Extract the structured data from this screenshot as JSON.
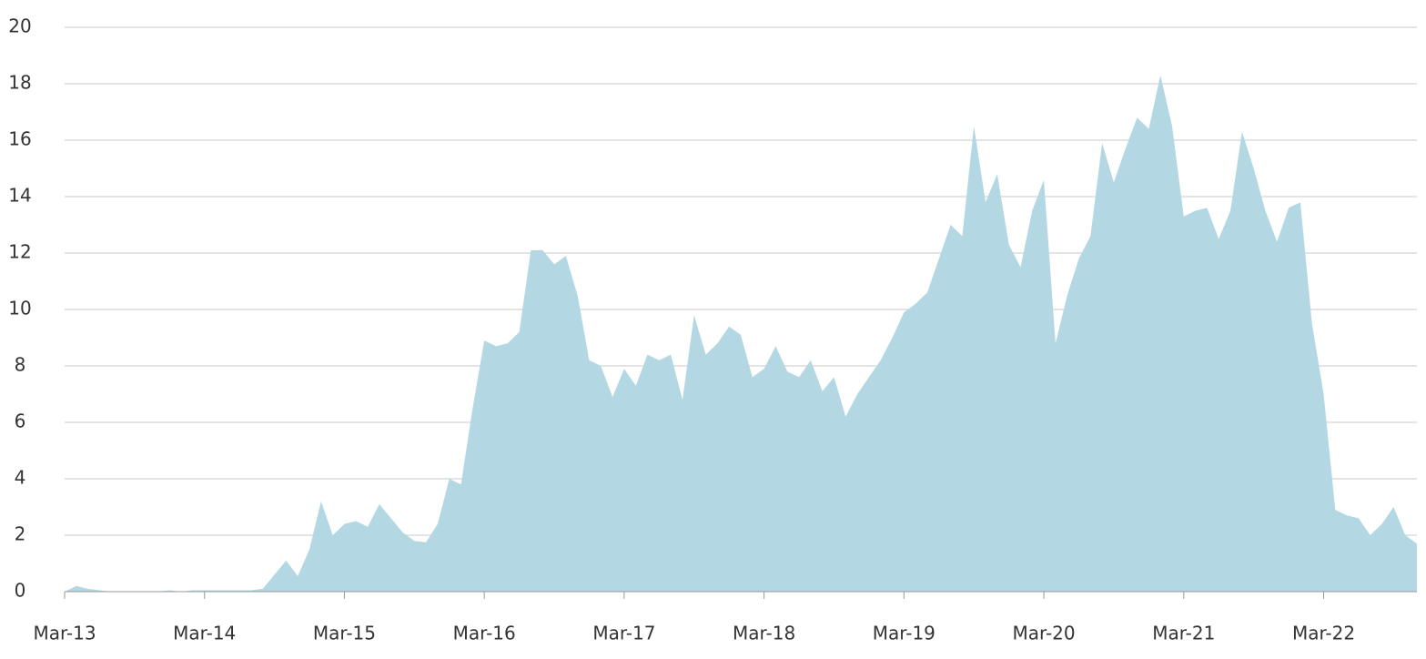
{
  "chart_data": {
    "type": "area",
    "color": "#b3d8e4",
    "grid": true,
    "ylim": [
      0,
      20
    ],
    "yticks": [
      0,
      2,
      4,
      6,
      8,
      10,
      12,
      14,
      16,
      18,
      20
    ],
    "categories": [
      "Mar-13",
      null,
      null,
      null,
      null,
      null,
      null,
      null,
      null,
      null,
      null,
      null,
      "Mar-14",
      null,
      null,
      null,
      null,
      null,
      null,
      null,
      null,
      null,
      null,
      null,
      "Mar-15",
      null,
      null,
      null,
      null,
      null,
      null,
      null,
      null,
      null,
      null,
      null,
      "Mar-16",
      null,
      null,
      null,
      null,
      null,
      null,
      null,
      null,
      null,
      null,
      null,
      "Mar-17",
      null,
      null,
      null,
      null,
      null,
      null,
      null,
      null,
      null,
      null,
      null,
      "Mar-18",
      null,
      null,
      null,
      null,
      null,
      null,
      null,
      null,
      null,
      null,
      null,
      "Mar-19",
      null,
      null,
      null,
      null,
      null,
      null,
      null,
      null,
      null,
      null,
      null,
      "Mar-20",
      null,
      null,
      null,
      null,
      null,
      null,
      null,
      null,
      null,
      null,
      null,
      "Mar-21",
      null,
      null,
      null,
      null,
      null,
      null,
      null,
      null,
      null,
      null,
      null,
      "Mar-22",
      null,
      null,
      null,
      null,
      null,
      null,
      null,
      null
    ],
    "values": [
      0,
      0.2,
      0.1,
      0.05,
      0,
      0,
      0,
      0,
      0,
      0.05,
      0,
      0.05,
      0.05,
      0.05,
      0.05,
      0.05,
      0.05,
      0.1,
      0.6,
      1.1,
      0.55,
      1.5,
      3.2,
      2.0,
      2.4,
      2.5,
      2.3,
      3.1,
      2.6,
      2.1,
      1.8,
      1.75,
      2.4,
      4.0,
      3.8,
      6.5,
      8.9,
      8.7,
      8.8,
      9.2,
      12.1,
      12.1,
      11.6,
      11.9,
      10.5,
      8.2,
      8.0,
      6.9,
      7.9,
      7.3,
      8.4,
      8.2,
      8.4,
      6.8,
      9.8,
      8.4,
      8.8,
      9.4,
      9.1,
      7.6,
      7.9,
      8.7,
      7.8,
      7.6,
      8.2,
      7.1,
      7.6,
      6.2,
      7.0,
      7.6,
      8.2,
      9.0,
      9.9,
      10.2,
      10.6,
      11.8,
      13.0,
      12.6,
      16.5,
      13.8,
      14.8,
      12.3,
      11.5,
      13.5,
      14.6,
      8.8,
      10.5,
      11.8,
      12.6,
      15.9,
      14.5,
      15.7,
      16.8,
      16.4,
      18.3,
      16.5,
      13.3,
      13.5,
      13.6,
      12.5,
      13.5,
      16.3,
      15.0,
      13.5,
      12.4,
      13.6,
      13.8,
      9.5,
      7.0,
      2.9,
      2.7,
      2.6,
      2.0,
      2.4,
      3.0,
      2.0,
      1.7
    ]
  }
}
